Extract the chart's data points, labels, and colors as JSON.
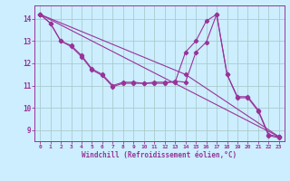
{
  "background_color": "#cceeff",
  "line_color": "#993399",
  "grid_color": "#aacccc",
  "xlabel": "Windchill (Refroidissement éolien,°C)",
  "x_ticks": [
    0,
    1,
    2,
    3,
    4,
    5,
    6,
    7,
    8,
    9,
    10,
    11,
    12,
    13,
    14,
    15,
    16,
    17,
    18,
    19,
    20,
    21,
    22,
    23
  ],
  "ylim": [
    8.5,
    14.6
  ],
  "xlim": [
    -0.5,
    23.5
  ],
  "yticks": [
    9,
    10,
    11,
    12,
    13,
    14
  ],
  "line1": {
    "x": [
      0,
      1,
      2,
      3,
      4,
      5,
      6,
      7,
      8,
      9,
      10,
      11,
      12,
      13,
      14,
      15,
      16,
      17,
      18,
      19,
      20,
      21,
      22,
      23
    ],
    "y": [
      14.2,
      13.8,
      13.0,
      12.8,
      12.35,
      11.75,
      11.5,
      11.0,
      11.15,
      11.15,
      11.1,
      11.15,
      11.15,
      11.15,
      12.5,
      13.0,
      13.9,
      14.2,
      11.5,
      10.5,
      10.5,
      9.9,
      8.8,
      8.7
    ]
  },
  "line2": {
    "x": [
      0,
      1,
      2,
      3,
      4,
      5,
      6,
      7,
      8,
      9,
      10,
      11,
      12,
      13,
      14,
      15,
      16,
      17,
      18,
      19,
      20,
      21,
      22,
      23
    ],
    "y": [
      14.2,
      13.8,
      13.0,
      12.75,
      12.3,
      11.7,
      11.45,
      10.95,
      11.1,
      11.1,
      11.1,
      11.1,
      11.1,
      11.2,
      11.15,
      12.5,
      12.95,
      14.2,
      11.5,
      10.45,
      10.45,
      9.85,
      8.75,
      8.65
    ]
  },
  "line3": {
    "x": [
      0,
      23
    ],
    "y": [
      14.2,
      8.7
    ]
  },
  "line4": {
    "x": [
      0,
      14,
      23
    ],
    "y": [
      14.2,
      11.5,
      8.7
    ]
  }
}
